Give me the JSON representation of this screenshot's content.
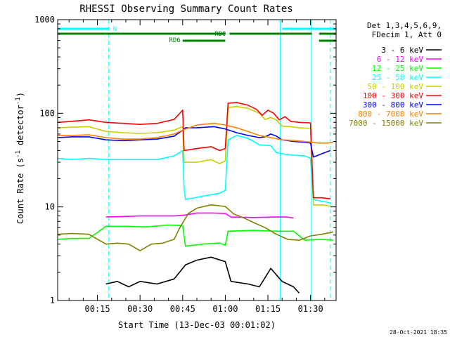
{
  "chart_data": {
    "type": "line",
    "title": "RHESSI Observing Summary Count Rates",
    "xlabel": "Start Time (13-Dec-03 00:01:02)",
    "ylabel_main": "Count Rate (s",
    "ylabel_sup1": "-1",
    "ylabel_mid": " detector",
    "ylabel_sup2": "-1",
    "ylabel_end": ")",
    "yscale": "log",
    "ylim": [
      1,
      1000
    ],
    "xlim_minutes": [
      1.0,
      99.0
    ],
    "x_ticks": [
      {
        "label": "00:15",
        "minute": 15
      },
      {
        "label": "00:30",
        "minute": 30
      },
      {
        "label": "00:45",
        "minute": 45
      },
      {
        "label": "01:00",
        "minute": 60
      },
      {
        "label": "01:15",
        "minute": 75
      },
      {
        "label": "01:30",
        "minute": 90
      }
    ],
    "y_ticks": [
      {
        "label": "1",
        "value": 1
      },
      {
        "label": "10",
        "value": 10
      },
      {
        "label": "100",
        "value": 100
      },
      {
        "label": "1000",
        "value": 1000
      }
    ],
    "legend_header": [
      "Det 1,3,4,5,6,9,",
      "FDecim 1, Att 0"
    ],
    "legend_position": "right",
    "timestamp": "28-Oct-2021 18:35",
    "annotations": {
      "night_label": "N",
      "night_color": "#00ffff",
      "night_intervals_minutes": [
        [
          1.0,
          19.0
        ],
        [
          80.0,
          99.0
        ]
      ],
      "dashed_lines_minutes": [
        19.0,
        97.0
      ],
      "solid_lines_minutes": [
        79.3,
        90.3
      ],
      "rd0_label": "RD0",
      "rd6_label": "RD6",
      "saa_color": "#008000",
      "rd0_intervals_minutes": [
        [
          1.0,
          60.0
        ],
        [
          61.5,
          90.5
        ],
        [
          93.0,
          99.0
        ]
      ],
      "rd6_intervals_minutes": [
        [
          45.0,
          60.0
        ],
        [
          93.0,
          99.0
        ]
      ]
    },
    "series": [
      {
        "name": "3 - 6 keV",
        "color": "#000000",
        "points": [
          [
            18,
            1.5
          ],
          [
            22,
            1.6
          ],
          [
            26,
            1.4
          ],
          [
            30,
            1.6
          ],
          [
            36,
            1.5
          ],
          [
            42,
            1.7
          ],
          [
            46,
            2.4
          ],
          [
            50,
            2.7
          ],
          [
            55,
            2.9
          ],
          [
            60,
            2.6
          ],
          [
            62,
            1.6
          ],
          [
            68,
            1.5
          ],
          [
            72,
            1.4
          ],
          [
            76,
            2.2
          ],
          [
            80,
            1.6
          ],
          [
            84,
            1.4
          ],
          [
            86,
            1.2
          ]
        ]
      },
      {
        "name": "6 - 12 keV",
        "color": "#ff00ff",
        "points": [
          [
            18,
            7.8
          ],
          [
            25,
            7.9
          ],
          [
            30,
            8.0
          ],
          [
            36,
            8.0
          ],
          [
            42,
            8.0
          ],
          [
            46,
            8.2
          ],
          [
            50,
            8.6
          ],
          [
            56,
            8.6
          ],
          [
            60,
            8.5
          ],
          [
            62,
            7.8
          ],
          [
            70,
            7.7
          ],
          [
            78,
            7.8
          ],
          [
            82,
            7.8
          ],
          [
            84,
            7.6
          ]
        ]
      },
      {
        "name": "12 - 25 keV",
        "color": "#00ff00",
        "points": [
          [
            1,
            4.5
          ],
          [
            6,
            4.6
          ],
          [
            12,
            4.6
          ],
          [
            18,
            6.2
          ],
          [
            25,
            6.2
          ],
          [
            32,
            6.1
          ],
          [
            40,
            6.4
          ],
          [
            45,
            6.3
          ],
          [
            46,
            3.8
          ],
          [
            52,
            4.0
          ],
          [
            58,
            4.1
          ],
          [
            60,
            3.9
          ],
          [
            61,
            5.5
          ],
          [
            70,
            5.6
          ],
          [
            78,
            5.5
          ],
          [
            84,
            5.5
          ],
          [
            88,
            4.4
          ],
          [
            94,
            4.5
          ],
          [
            98,
            4.4
          ]
        ]
      },
      {
        "name": "25 - 50 keV",
        "color": "#00ffff",
        "points": [
          [
            1,
            33
          ],
          [
            6,
            32
          ],
          [
            12,
            33
          ],
          [
            18,
            32
          ],
          [
            24,
            32
          ],
          [
            30,
            32
          ],
          [
            36,
            32
          ],
          [
            42,
            35
          ],
          [
            45,
            40
          ],
          [
            45.5,
            16
          ],
          [
            46,
            12
          ],
          [
            52,
            13
          ],
          [
            58,
            14
          ],
          [
            60,
            15
          ],
          [
            61,
            52
          ],
          [
            64,
            58
          ],
          [
            68,
            54
          ],
          [
            72,
            46
          ],
          [
            76,
            45
          ],
          [
            78,
            38
          ],
          [
            82,
            36
          ],
          [
            88,
            35
          ],
          [
            90,
            33
          ],
          [
            91,
            12
          ],
          [
            94,
            11.5
          ],
          [
            97,
            11
          ]
        ]
      },
      {
        "name": "50 - 100 keV",
        "color": "#cccc00",
        "points": [
          [
            1,
            70
          ],
          [
            6,
            71
          ],
          [
            12,
            72
          ],
          [
            18,
            64
          ],
          [
            24,
            62
          ],
          [
            30,
            61
          ],
          [
            36,
            62
          ],
          [
            42,
            66
          ],
          [
            45,
            72
          ],
          [
            45.5,
            30
          ],
          [
            50,
            30
          ],
          [
            55,
            32
          ],
          [
            58,
            29
          ],
          [
            60,
            31
          ],
          [
            61,
            115
          ],
          [
            64,
            118
          ],
          [
            68,
            113
          ],
          [
            72,
            100
          ],
          [
            74,
            86
          ],
          [
            76,
            90
          ],
          [
            78,
            85
          ],
          [
            80,
            73
          ],
          [
            83,
            72
          ],
          [
            86,
            70
          ],
          [
            90,
            69
          ],
          [
            91,
            10.5
          ],
          [
            94,
            10.5
          ],
          [
            97,
            10.2
          ]
        ]
      },
      {
        "name": "100 - 300 keV",
        "color": "#ff0000",
        "points": [
          [
            1,
            80
          ],
          [
            6,
            82
          ],
          [
            12,
            85
          ],
          [
            18,
            80
          ],
          [
            24,
            78
          ],
          [
            30,
            76
          ],
          [
            36,
            78
          ],
          [
            42,
            86
          ],
          [
            45,
            108
          ],
          [
            45.5,
            40
          ],
          [
            50,
            42
          ],
          [
            55,
            44
          ],
          [
            58,
            40
          ],
          [
            60,
            42
          ],
          [
            61,
            128
          ],
          [
            64,
            130
          ],
          [
            68,
            122
          ],
          [
            71,
            110
          ],
          [
            73,
            95
          ],
          [
            75,
            108
          ],
          [
            77,
            100
          ],
          [
            79,
            85
          ],
          [
            81,
            92
          ],
          [
            83,
            82
          ],
          [
            86,
            80
          ],
          [
            90,
            79
          ],
          [
            91,
            12.5
          ],
          [
            94,
            12.5
          ],
          [
            97,
            12.2
          ]
        ]
      },
      {
        "name": "300 - 800 keV",
        "color": "#0000ff",
        "points": [
          [
            1,
            55
          ],
          [
            6,
            56
          ],
          [
            12,
            56
          ],
          [
            18,
            52
          ],
          [
            24,
            51
          ],
          [
            30,
            52
          ],
          [
            36,
            53
          ],
          [
            42,
            57
          ],
          [
            45,
            66
          ],
          [
            46,
            70
          ],
          [
            50,
            70
          ],
          [
            56,
            72
          ],
          [
            60,
            68
          ],
          [
            64,
            62
          ],
          [
            68,
            58
          ],
          [
            72,
            55
          ],
          [
            74,
            56
          ],
          [
            76,
            60
          ],
          [
            78,
            57
          ],
          [
            80,
            52
          ],
          [
            84,
            50
          ],
          [
            88,
            49
          ],
          [
            90,
            48
          ],
          [
            91,
            34
          ],
          [
            94,
            37
          ],
          [
            97,
            40
          ]
        ]
      },
      {
        "name": "800 - 7000 keV",
        "color": "#ff8000",
        "points": [
          [
            1,
            58
          ],
          [
            6,
            58
          ],
          [
            12,
            59
          ],
          [
            18,
            55
          ],
          [
            24,
            53
          ],
          [
            30,
            53
          ],
          [
            36,
            55
          ],
          [
            42,
            60
          ],
          [
            45,
            66
          ],
          [
            50,
            75
          ],
          [
            56,
            78
          ],
          [
            60,
            75
          ],
          [
            64,
            70
          ],
          [
            68,
            64
          ],
          [
            72,
            58
          ],
          [
            76,
            55
          ],
          [
            80,
            52
          ],
          [
            84,
            51
          ],
          [
            88,
            50
          ],
          [
            90,
            49
          ],
          [
            93,
            48
          ],
          [
            96,
            48
          ],
          [
            98,
            49
          ]
        ]
      },
      {
        "name": "7000 - 15000 keV",
        "color": "#808000",
        "points": [
          [
            1,
            5.1
          ],
          [
            6,
            5.2
          ],
          [
            12,
            5.1
          ],
          [
            18,
            4.0
          ],
          [
            22,
            4.1
          ],
          [
            26,
            4.0
          ],
          [
            30,
            3.4
          ],
          [
            34,
            4.0
          ],
          [
            38,
            4.1
          ],
          [
            42,
            4.5
          ],
          [
            44,
            6.0
          ],
          [
            47,
            8.5
          ],
          [
            50,
            9.7
          ],
          [
            55,
            10.5
          ],
          [
            60,
            10.1
          ],
          [
            63,
            8.4
          ],
          [
            67,
            7.5
          ],
          [
            70,
            6.8
          ],
          [
            74,
            6.0
          ],
          [
            78,
            5.1
          ],
          [
            82,
            4.5
          ],
          [
            86,
            4.4
          ],
          [
            90,
            4.9
          ],
          [
            94,
            5.1
          ],
          [
            98,
            5.4
          ]
        ]
      }
    ]
  }
}
